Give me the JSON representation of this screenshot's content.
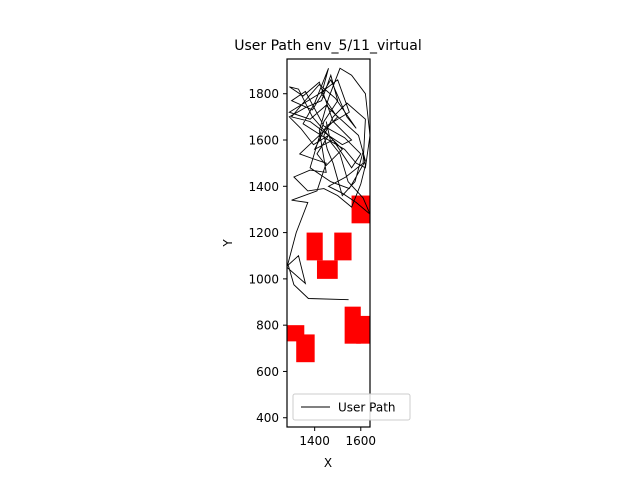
{
  "chart_data": {
    "type": "line",
    "title": "User Path env_5/11_virtual",
    "xlabel": "X",
    "ylabel": "Y",
    "xlim": [
      1280,
      1640
    ],
    "ylim": [
      360,
      1950
    ],
    "xticks": [
      1400,
      1600
    ],
    "yticks": [
      400,
      600,
      800,
      1000,
      1200,
      1400,
      1600,
      1800
    ],
    "grid": false,
    "legend": {
      "placement": "lower-center",
      "entries": [
        "User Path"
      ]
    },
    "colors": {
      "path": "#000000",
      "obstacle": "#ff0000"
    },
    "series": [
      {
        "name": "User Path",
        "x": [
          1547,
          1373,
          1310,
          1285,
          1330,
          1360,
          1280,
          1320,
          1370,
          1300,
          1410,
          1450,
          1390,
          1335,
          1420,
          1500,
          1450,
          1380,
          1290,
          1420,
          1500,
          1550,
          1450,
          1400,
          1480,
          1560,
          1600,
          1530,
          1440,
          1360,
          1300,
          1390,
          1470,
          1540,
          1580,
          1490,
          1420,
          1350,
          1300,
          1380,
          1460,
          1520,
          1450,
          1410,
          1460,
          1390,
          1330,
          1290,
          1350,
          1420,
          1480,
          1560,
          1520,
          1460,
          1395,
          1340,
          1290,
          1360,
          1430,
          1470,
          1500,
          1440,
          1380,
          1470,
          1550,
          1620,
          1590,
          1490,
          1430,
          1460,
          1400,
          1350,
          1460,
          1530,
          1580,
          1620,
          1640,
          1620,
          1560,
          1510,
          1460,
          1420,
          1450,
          1380,
          1310,
          1370,
          1440,
          1500,
          1560,
          1600,
          1620,
          1610,
          1575,
          1520,
          1480,
          1455,
          1440,
          1480,
          1540,
          1620,
          1610,
          1535,
          1460,
          1520,
          1580,
          1640,
          1610,
          1545,
          1510,
          1470,
          1450
        ],
        "y": [
          910,
          915,
          975,
          1060,
          1100,
          980,
          1050,
          1200,
          1330,
          1340,
          1380,
          1500,
          1520,
          1540,
          1620,
          1700,
          1750,
          1690,
          1720,
          1800,
          1860,
          1720,
          1660,
          1560,
          1600,
          1480,
          1540,
          1610,
          1660,
          1810,
          1770,
          1730,
          1860,
          1700,
          1650,
          1780,
          1840,
          1760,
          1700,
          1680,
          1620,
          1560,
          1490,
          1540,
          1620,
          1700,
          1820,
          1830,
          1790,
          1850,
          1680,
          1600,
          1580,
          1620,
          1580,
          1650,
          1700,
          1740,
          1770,
          1880,
          1770,
          1680,
          1480,
          1420,
          1390,
          1510,
          1620,
          1710,
          1800,
          1910,
          1760,
          1670,
          1600,
          1560,
          1500,
          1480,
          1620,
          1800,
          1880,
          1910,
          1780,
          1640,
          1460,
          1470,
          1440,
          1380,
          1390,
          1360,
          1310,
          1410,
          1490,
          1550,
          1420,
          1360,
          1500,
          1560,
          1620,
          1700,
          1760,
          1690,
          1500,
          1440,
          1400,
          1370,
          1330,
          1280,
          1350,
          1420,
          1540,
          1590,
          1680
        ]
      }
    ],
    "obstacles": [
      {
        "x": [
          1280,
          1355
        ],
        "y": [
          730,
          800
        ]
      },
      {
        "x": [
          1320,
          1400
        ],
        "y": [
          640,
          760
        ]
      },
      {
        "x": [
          1530,
          1600
        ],
        "y": [
          720,
          880
        ]
      },
      {
        "x": [
          1580,
          1640
        ],
        "y": [
          720,
          840
        ]
      },
      {
        "x": [
          1410,
          1500
        ],
        "y": [
          1000,
          1080
        ]
      },
      {
        "x": [
          1365,
          1435
        ],
        "y": [
          1080,
          1200
        ]
      },
      {
        "x": [
          1485,
          1560
        ],
        "y": [
          1080,
          1200
        ]
      },
      {
        "x": [
          1560,
          1640
        ],
        "y": [
          1240,
          1360
        ]
      }
    ]
  }
}
